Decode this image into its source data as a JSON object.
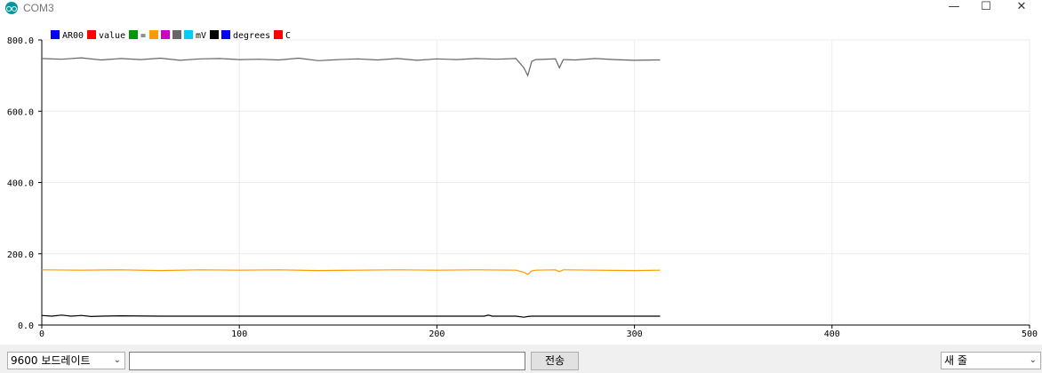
{
  "window": {
    "title": "COM3",
    "minimize_glyph": "—",
    "maximize_glyph": "☐",
    "close_glyph": "✕",
    "icon": "arduino-icon"
  },
  "chart_data": {
    "type": "line",
    "title": "",
    "xlabel": "",
    "ylabel": "",
    "xlim": [
      0,
      500
    ],
    "ylim": [
      0,
      800
    ],
    "x_ticks": [
      "0",
      "100",
      "200",
      "300",
      "400",
      "500"
    ],
    "y_ticks": [
      "0.0",
      "200.0",
      "400.0",
      "600.0",
      "800.0"
    ],
    "grid": true,
    "legend_position": "top-left",
    "legend": [
      {
        "label": "AR00",
        "color": "#0000ff"
      },
      {
        "label": "value",
        "color": "#ff0000"
      },
      {
        "label": "=",
        "color": "#009900"
      },
      {
        "label": "",
        "color": "#ff9900"
      },
      {
        "label": "",
        "color": "#cc00cc"
      },
      {
        "label": "",
        "color": "#666666"
      },
      {
        "label": "mV",
        "color": "#00ccff"
      },
      {
        "label": "",
        "color": "#000000"
      },
      {
        "label": "degrees",
        "color": "#0000ff"
      },
      {
        "label": "C",
        "color": "#ff0000"
      }
    ],
    "series": [
      {
        "color": "#666666",
        "x": [
          0,
          10,
          20,
          30,
          40,
          50,
          60,
          70,
          80,
          90,
          100,
          110,
          120,
          130,
          140,
          150,
          160,
          170,
          180,
          190,
          200,
          210,
          220,
          230,
          240,
          244,
          246,
          248,
          250,
          260,
          262,
          264,
          270,
          280,
          290,
          300,
          310,
          313
        ],
        "y": [
          748,
          746,
          750,
          744,
          748,
          745,
          749,
          743,
          747,
          748,
          745,
          746,
          744,
          749,
          742,
          745,
          747,
          744,
          748,
          743,
          747,
          745,
          748,
          746,
          748,
          722,
          700,
          740,
          745,
          747,
          722,
          745,
          744,
          748,
          745,
          743,
          744,
          744
        ]
      },
      {
        "color": "#ff9900",
        "x": [
          0,
          20,
          40,
          60,
          80,
          100,
          120,
          140,
          160,
          180,
          200,
          220,
          240,
          244,
          246,
          248,
          250,
          260,
          262,
          264,
          280,
          300,
          313
        ],
        "y": [
          155,
          154,
          155,
          153,
          155,
          154,
          155,
          153,
          154,
          155,
          154,
          155,
          154,
          148,
          142,
          152,
          154,
          155,
          150,
          155,
          154,
          153,
          154
        ]
      },
      {
        "color": "#000000",
        "x": [
          0,
          5,
          10,
          15,
          20,
          25,
          30,
          40,
          60,
          100,
          150,
          200,
          224,
          226,
          228,
          240,
          244,
          246,
          248,
          260,
          280,
          300,
          313
        ],
        "y": [
          27,
          25,
          28,
          25,
          27,
          24,
          25,
          26,
          25,
          25,
          25,
          25,
          25,
          28,
          25,
          25,
          22,
          24,
          25,
          25,
          25,
          25,
          25
        ]
      }
    ]
  },
  "footer": {
    "baud_select": "9600 보드레이트",
    "send_input_value": "",
    "send_button": "전송",
    "line_ending_select": "새 줄"
  }
}
